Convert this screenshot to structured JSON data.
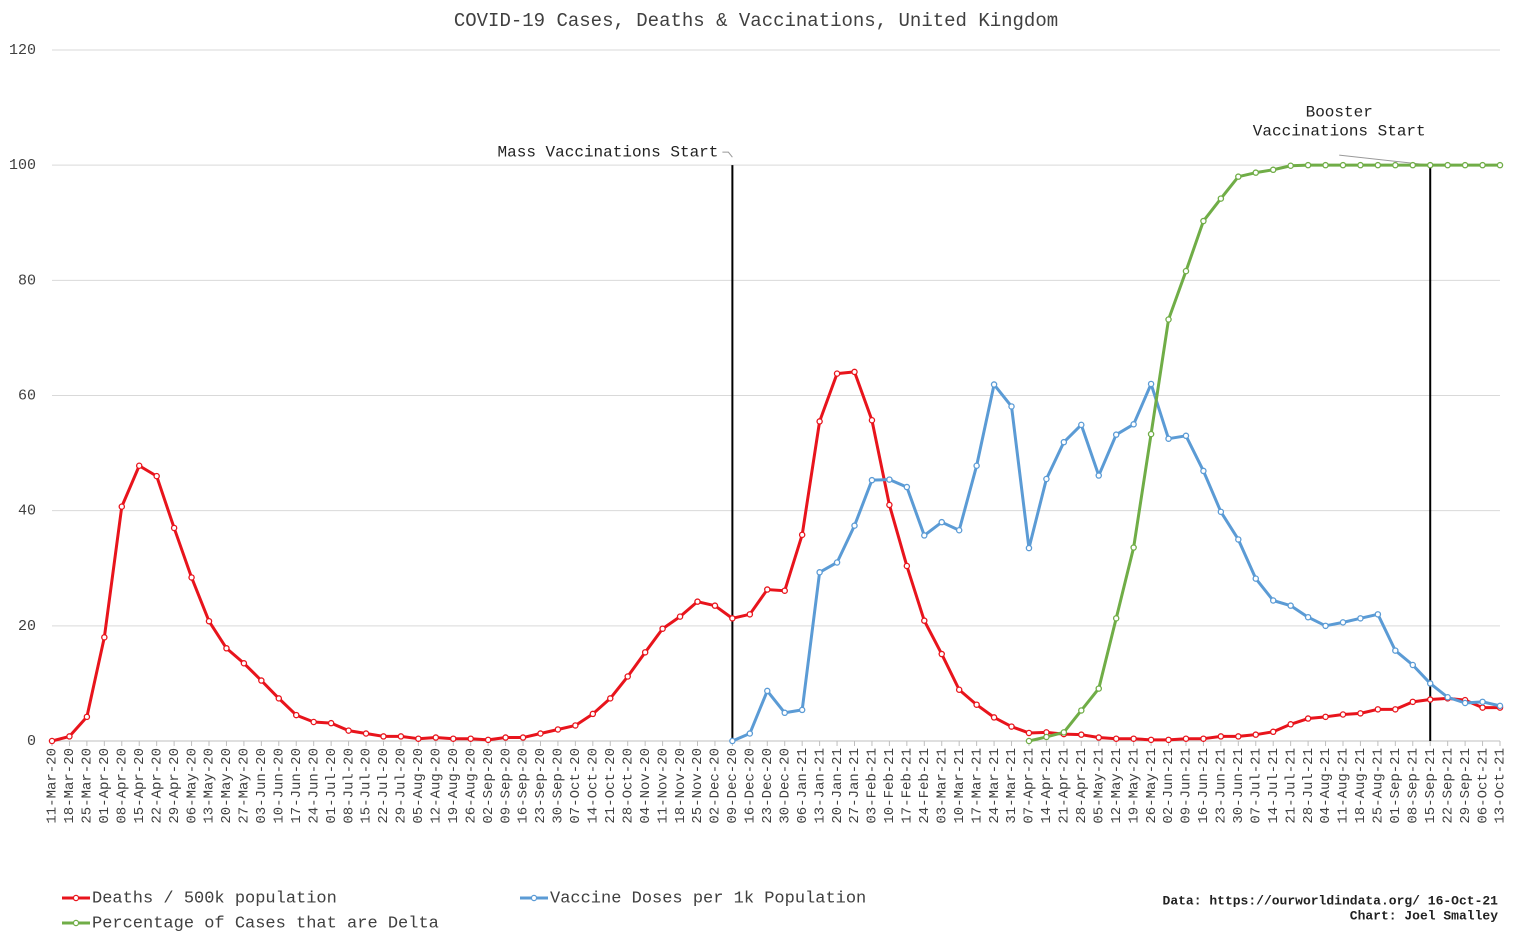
{
  "chart_data": {
    "type": "line",
    "title": "COVID-19 Cases, Deaths & Vaccinations, United Kingdom",
    "categories": [
      "11-Mar-20",
      "18-Mar-20",
      "25-Mar-20",
      "01-Apr-20",
      "08-Apr-20",
      "15-Apr-20",
      "22-Apr-20",
      "29-Apr-20",
      "06-May-20",
      "13-May-20",
      "20-May-20",
      "27-May-20",
      "03-Jun-20",
      "10-Jun-20",
      "17-Jun-20",
      "24-Jun-20",
      "01-Jul-20",
      "08-Jul-20",
      "15-Jul-20",
      "22-Jul-20",
      "29-Jul-20",
      "05-Aug-20",
      "12-Aug-20",
      "19-Aug-20",
      "26-Aug-20",
      "02-Sep-20",
      "09-Sep-20",
      "16-Sep-20",
      "23-Sep-20",
      "30-Sep-20",
      "07-Oct-20",
      "14-Oct-20",
      "21-Oct-20",
      "28-Oct-20",
      "04-Nov-20",
      "11-Nov-20",
      "18-Nov-20",
      "25-Nov-20",
      "02-Dec-20",
      "09-Dec-20",
      "16-Dec-20",
      "23-Dec-20",
      "30-Dec-20",
      "06-Jan-21",
      "13-Jan-21",
      "20-Jan-21",
      "27-Jan-21",
      "03-Feb-21",
      "10-Feb-21",
      "17-Feb-21",
      "24-Feb-21",
      "03-Mar-21",
      "10-Mar-21",
      "17-Mar-21",
      "24-Mar-21",
      "31-Mar-21",
      "07-Apr-21",
      "14-Apr-21",
      "21-Apr-21",
      "28-Apr-21",
      "05-May-21",
      "12-May-21",
      "19-May-21",
      "26-May-21",
      "02-Jun-21",
      "09-Jun-21",
      "16-Jun-21",
      "23-Jun-21",
      "30-Jun-21",
      "07-Jul-21",
      "14-Jul-21",
      "21-Jul-21",
      "28-Jul-21",
      "04-Aug-21",
      "11-Aug-21",
      "18-Aug-21",
      "25-Aug-21",
      "01-Sep-21",
      "08-Sep-21",
      "15-Sep-21",
      "22-Sep-21",
      "29-Sep-21",
      "06-Oct-21",
      "13-Oct-21"
    ],
    "series": [
      {
        "name": "Deaths / 500k population",
        "color": "#e8141c",
        "values": [
          0,
          0.8,
          4.2,
          18,
          40.7,
          47.8,
          46,
          37,
          28.4,
          20.8,
          16.1,
          13.5,
          10.5,
          7.4,
          4.5,
          3.3,
          3.1,
          1.8,
          1.3,
          0.8,
          0.8,
          0.4,
          0.6,
          0.4,
          0.4,
          0.2,
          0.6,
          0.6,
          1.3,
          2,
          2.7,
          4.7,
          7.4,
          11.2,
          15.4,
          19.5,
          21.6,
          24.2,
          23.5,
          21.3,
          22,
          26.3,
          26.1,
          35.8,
          55.5,
          63.8,
          64.1,
          55.7,
          41,
          30.4,
          20.9,
          15.1,
          8.9,
          6.3,
          4.1,
          2.5,
          1.4,
          1.5,
          1.2,
          1.1,
          0.6,
          0.4,
          0.4,
          0.2,
          0.2,
          0.4,
          0.4,
          0.8,
          0.8,
          1.1,
          1.6,
          2.9,
          3.9,
          4.2,
          4.6,
          4.8,
          5.5,
          5.5,
          6.8,
          7.2,
          7.4,
          7.1,
          5.8,
          5.8
        ]
      },
      {
        "name": "Vaccine Doses per 1k Population",
        "color": "#5b9bd5",
        "values": [
          null,
          null,
          null,
          null,
          null,
          null,
          null,
          null,
          null,
          null,
          null,
          null,
          null,
          null,
          null,
          null,
          null,
          null,
          null,
          null,
          null,
          null,
          null,
          null,
          null,
          null,
          null,
          null,
          null,
          null,
          null,
          null,
          null,
          null,
          null,
          null,
          null,
          null,
          null,
          0,
          1.3,
          8.7,
          4.9,
          5.4,
          29.3,
          31,
          37.4,
          45.3,
          45.4,
          44.1,
          35.7,
          38,
          36.6,
          47.8,
          61.9,
          58.1,
          33.5,
          45.5,
          51.9,
          54.9,
          46.1,
          53.2,
          55,
          62,
          52.5,
          53,
          46.9,
          39.8,
          35,
          28.2,
          24.4,
          23.5,
          21.5,
          20,
          20.6,
          21.3,
          22,
          15.7,
          13.2,
          10,
          7.6,
          6.6,
          6.8,
          6.1
        ]
      },
      {
        "name": "Percentage of Cases that are Delta",
        "color": "#70ad47",
        "values": [
          null,
          null,
          null,
          null,
          null,
          null,
          null,
          null,
          null,
          null,
          null,
          null,
          null,
          null,
          null,
          null,
          null,
          null,
          null,
          null,
          null,
          null,
          null,
          null,
          null,
          null,
          null,
          null,
          null,
          null,
          null,
          null,
          null,
          null,
          null,
          null,
          null,
          null,
          null,
          null,
          null,
          null,
          null,
          null,
          null,
          null,
          null,
          null,
          null,
          null,
          null,
          null,
          null,
          null,
          null,
          null,
          0,
          0.7,
          1.5,
          5.3,
          9.1,
          21.3,
          33.6,
          53.3,
          73.2,
          81.6,
          90.3,
          94.2,
          98,
          98.7,
          99.2,
          99.9,
          100,
          100,
          100,
          100,
          100,
          100,
          100,
          100,
          100,
          100,
          100,
          100
        ]
      }
    ],
    "ylim": [
      0,
      120
    ],
    "yticks": [
      0,
      20,
      40,
      60,
      80,
      100,
      120
    ],
    "grid": true,
    "annotations": [
      {
        "lines": [
          "Mass Vaccinations Start"
        ],
        "x": "09-Dec-20",
        "y": 100
      },
      {
        "lines": [
          "Booster",
          "Vaccinations Start"
        ],
        "x": "15-Sep-21",
        "y": 100
      }
    ],
    "source": [
      "Data: https://ourworldindata.org/ 16-Oct-21",
      "Chart: Joel Smalley"
    ]
  }
}
